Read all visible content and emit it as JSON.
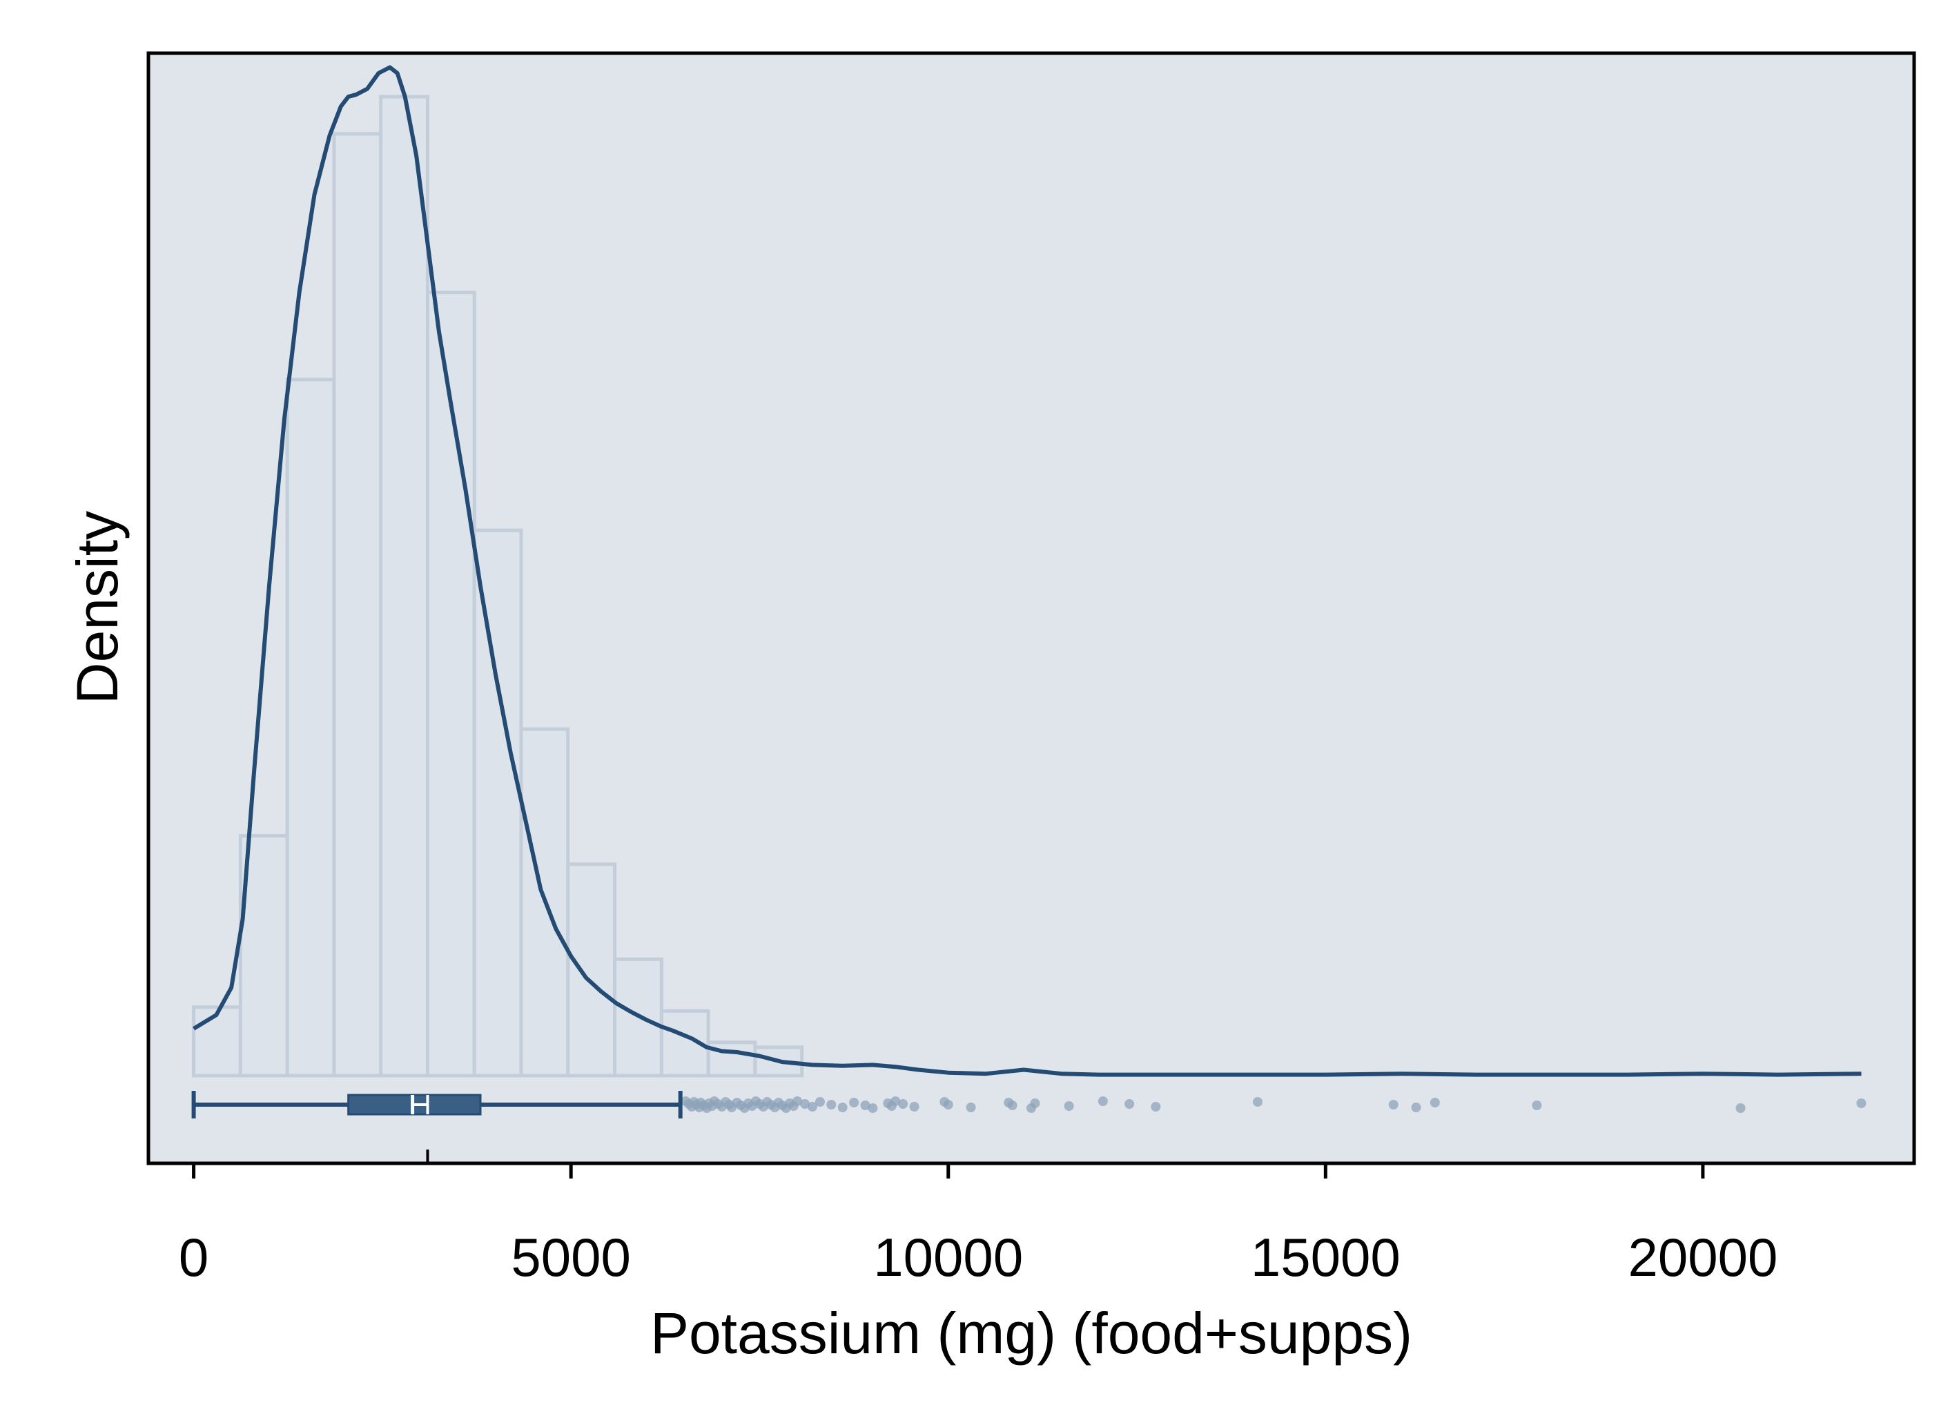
{
  "chart_data": {
    "type": "histogram",
    "xlabel": "Potassium (mg) (food+supps)",
    "ylabel": "Density",
    "xlim": [
      -600,
      22800
    ],
    "x_ticks": [
      0,
      5000,
      10000,
      15000,
      20000
    ],
    "x_tick_labels": [
      "0",
      "5000",
      "10000",
      "15000",
      "20000"
    ],
    "y_ticks_shown": false,
    "grid": false,
    "legend": "none",
    "colors": {
      "background": "#dfe5ea",
      "bar_fill": "#dce3ea",
      "bar_edge": "#c3ceda",
      "line": "#234b73",
      "box_fill": "#3a5f85",
      "outlier": "#8ea3b8",
      "frame": "#000000"
    },
    "histogram": {
      "bin_width": 620,
      "bin_start": 0,
      "relative_heights": [
        0.07,
        0.245,
        0.711,
        0.962,
        1.0,
        0.8,
        0.557,
        0.354,
        0.216,
        0.119,
        0.066,
        0.034,
        0.029
      ]
    },
    "density_curve": {
      "x": [
        0,
        300,
        500,
        650,
        800,
        1000,
        1200,
        1400,
        1600,
        1800,
        1950,
        2050,
        2150,
        2300,
        2450,
        2600,
        2700,
        2800,
        2950,
        3100,
        3250,
        3400,
        3600,
        3800,
        4000,
        4200,
        4400,
        4600,
        4800,
        5000,
        5200,
        5400,
        5600,
        5800,
        6000,
        6200,
        6350,
        6600,
        6800,
        7000,
        7200,
        7500,
        7800,
        8200,
        8600,
        9000,
        9300,
        9600,
        10000,
        10500,
        11000,
        11500,
        12000,
        13000,
        14000,
        15000,
        16000,
        17000,
        18000,
        19000,
        20000,
        21000,
        22100
      ],
      "relative_y": [
        0.048,
        0.062,
        0.09,
        0.16,
        0.31,
        0.5,
        0.67,
        0.8,
        0.9,
        0.96,
        0.99,
        1.0,
        1.002,
        1.008,
        1.024,
        1.03,
        1.024,
        1.0,
        0.94,
        0.85,
        0.76,
        0.69,
        0.6,
        0.5,
        0.41,
        0.33,
        0.26,
        0.19,
        0.15,
        0.122,
        0.1,
        0.086,
        0.074,
        0.065,
        0.057,
        0.05,
        0.046,
        0.038,
        0.029,
        0.025,
        0.024,
        0.02,
        0.014,
        0.011,
        0.01,
        0.011,
        0.009,
        0.006,
        0.003,
        0.002,
        0.006,
        0.002,
        0.001,
        0.001,
        0.001,
        0.001,
        0.002,
        0.001,
        0.001,
        0.001,
        0.002,
        0.001,
        0.002
      ]
    },
    "boxplot": {
      "whisker_low": 0,
      "q1": 2050,
      "median": 2900,
      "q3": 3800,
      "whisker_high": 6450,
      "mean": 3100
    },
    "outliers": [
      6520,
      6560,
      6600,
      6630,
      6660,
      6700,
      6720,
      6760,
      6800,
      6830,
      6870,
      6900,
      6950,
      7000,
      7050,
      7100,
      7130,
      7200,
      7250,
      7300,
      7350,
      7400,
      7450,
      7500,
      7550,
      7600,
      7650,
      7700,
      7750,
      7800,
      7850,
      7900,
      7950,
      8000,
      8100,
      8200,
      8300,
      8450,
      8600,
      8750,
      8900,
      9000,
      9200,
      9250,
      9300,
      9400,
      9550,
      9950,
      10000,
      10300,
      10800,
      10850,
      11100,
      11150,
      11600,
      12050,
      12400,
      12750,
      14100,
      15900,
      16200,
      16450,
      17800,
      20500,
      22100
    ]
  }
}
